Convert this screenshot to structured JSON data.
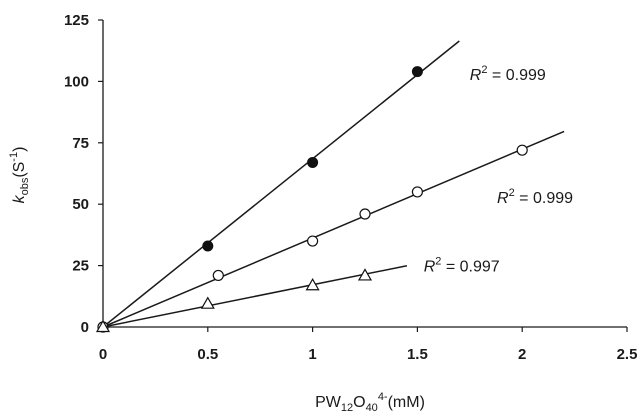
{
  "chart_data": {
    "type": "scatter",
    "xlabel": "PW12O40 4-(mM)",
    "ylabel": "kobs(S-1)",
    "xlim": [
      0,
      2.5
    ],
    "ylim": [
      0,
      125
    ],
    "xticks": [
      "0",
      "0.5",
      "1",
      "1.5",
      "2",
      "2.5"
    ],
    "yticks": [
      "0",
      "25",
      "50",
      "75",
      "100",
      "125"
    ],
    "grid": false,
    "legend": "none",
    "series": [
      {
        "marker": "filled-circle",
        "points": [
          [
            0,
            0
          ],
          [
            0.5,
            33
          ],
          [
            1,
            67
          ],
          [
            1.5,
            104
          ]
        ],
        "fit": {
          "slope": 68.5,
          "x_end": 1.7
        },
        "annotation": {
          "r2": "0.999",
          "at": [
            1.75,
            103
          ]
        }
      },
      {
        "marker": "open-circle",
        "points": [
          [
            0,
            0
          ],
          [
            0.55,
            21
          ],
          [
            1,
            35
          ],
          [
            1.25,
            46
          ],
          [
            1.5,
            55
          ],
          [
            2,
            72
          ]
        ],
        "fit": {
          "slope": 36.2,
          "x_end": 2.2
        },
        "annotation": {
          "r2": "0.999",
          "at": [
            1.88,
            53
          ]
        }
      },
      {
        "marker": "open-triangle",
        "points": [
          [
            0,
            0
          ],
          [
            0.5,
            9.5
          ],
          [
            1,
            17
          ],
          [
            1.25,
            21
          ]
        ],
        "fit": {
          "slope": 17.2,
          "x_end": 1.45
        },
        "annotation": {
          "r2": "0.997",
          "at": [
            1.53,
            25
          ]
        }
      }
    ]
  },
  "labels": {
    "r2_symbol": "R",
    "r2_exp": "2",
    "r2_eq": " = ",
    "y_k": "k",
    "y_sub": "obs",
    "y_unit_open": "(S",
    "y_unit_exp": "-1",
    "y_unit_close": ")",
    "x_main": "PW",
    "x_sub1": "12",
    "x_mid": "O",
    "x_sub2": "40",
    "x_sup": "4-",
    "x_unit": "(mM)"
  }
}
